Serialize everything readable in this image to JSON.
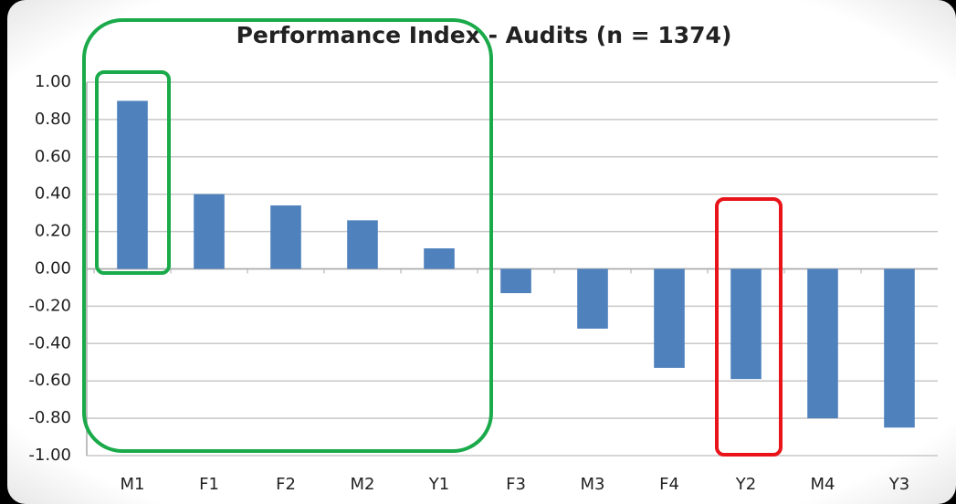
{
  "chart_data": {
    "type": "bar",
    "title": "Performance Index - Audits (n = 1374)",
    "categories": [
      "M1",
      "F1",
      "F2",
      "M2",
      "Y1",
      "F3",
      "M3",
      "F4",
      "Y2",
      "M4",
      "Y3"
    ],
    "values": [
      0.9,
      0.4,
      0.34,
      0.26,
      0.11,
      -0.13,
      -0.32,
      -0.53,
      -0.59,
      -0.8,
      -0.85
    ],
    "color": "#4f81bd",
    "ylim": [
      -1,
      1
    ],
    "yticks": [
      {
        "value": 1,
        "label": "1.00"
      },
      {
        "value": 0.8,
        "label": "0.80"
      },
      {
        "value": 0.6,
        "label": "0.60"
      },
      {
        "value": 0.4,
        "label": "0.40"
      },
      {
        "value": 0.2,
        "label": "0.20"
      },
      {
        "value": 0,
        "label": "0.00"
      },
      {
        "value": -0.2,
        "label": "-0.20"
      },
      {
        "value": -0.4,
        "label": "-0.40"
      },
      {
        "value": -0.6,
        "label": "-0.60"
      },
      {
        "value": -0.8,
        "label": "-0.80"
      },
      {
        "value": -1,
        "label": "-1.00"
      }
    ],
    "grid": true
  }
}
